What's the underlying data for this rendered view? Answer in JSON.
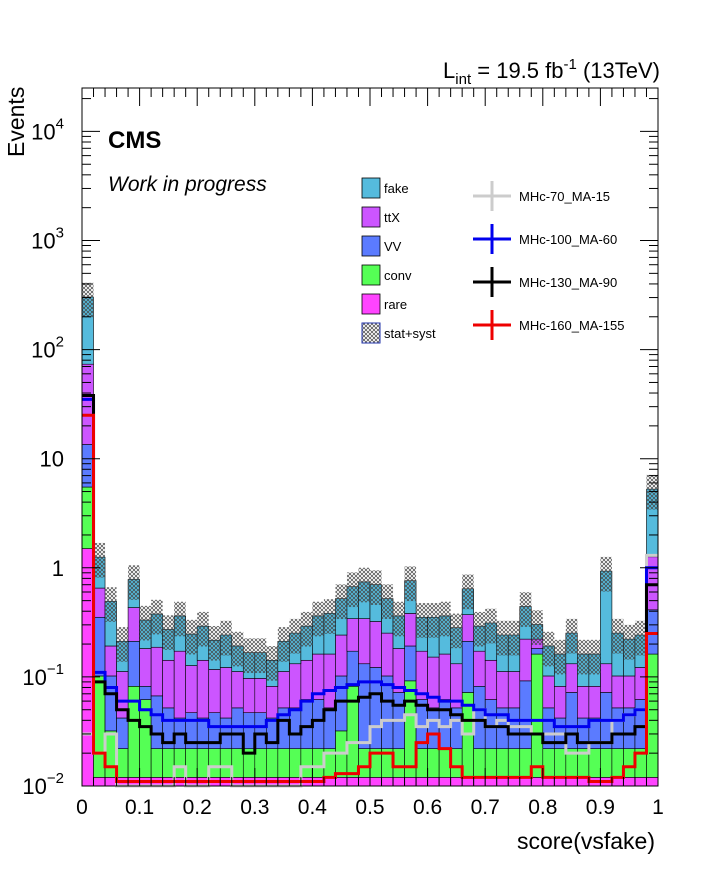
{
  "chart_data": {
    "type": "bar",
    "stacked": true,
    "log_y": true,
    "ylim": [
      0.01,
      25000
    ],
    "xlim": [
      0,
      1
    ],
    "xlabel": "score(vsfake)",
    "ylabel": "Events",
    "lumi_label_main": "L",
    "lumi_label_sub": "int",
    "lumi_label_mid": " = 19.5 fb",
    "lumi_label_sup": "-1",
    "lumi_label_tail": " (13TeV)",
    "experiment": "CMS",
    "status": "Work in progress",
    "x_ticks": [
      "0",
      "0.1",
      "0.2",
      "0.3",
      "0.4",
      "0.5",
      "0.6",
      "0.7",
      "0.8",
      "0.9",
      "1"
    ],
    "y_ticks": [
      {
        "value": 0.01,
        "base": "10",
        "exp": "−2"
      },
      {
        "value": 0.1,
        "base": "10",
        "exp": "−1"
      },
      {
        "value": 1,
        "base": "1",
        "exp": ""
      },
      {
        "value": 10,
        "base": "10",
        "exp": ""
      },
      {
        "value": 100,
        "base": "10",
        "exp": "2"
      },
      {
        "value": 1000,
        "base": "10",
        "exp": "3"
      },
      {
        "value": 10000,
        "base": "10",
        "exp": "4"
      }
    ],
    "stack": [
      {
        "name": "rare",
        "color": "#ff44ff",
        "values": [
          1.5,
          0.012,
          0.012,
          0.012,
          0.012,
          0.012,
          0.012,
          0.012,
          0.012,
          0.012,
          0.012,
          0.012,
          0.012,
          0.012,
          0.012,
          0.012,
          0.012,
          0.012,
          0.012,
          0.012,
          0.012,
          0.012,
          0.012,
          0.012,
          0.012,
          0.012,
          0.012,
          0.012,
          0.012,
          0.012,
          0.012,
          0.012,
          0.012,
          0.012,
          0.012,
          0.012,
          0.012,
          0.012,
          0.012,
          0.012,
          0.012,
          0.012,
          0.012,
          0.012,
          0.012,
          0.012,
          0.012,
          0.012,
          0.012,
          0.012
        ]
      },
      {
        "name": "conv",
        "color": "#55ff55",
        "values": [
          4,
          0.09,
          0.02,
          0.01,
          0.07,
          0.05,
          0.01,
          0.01,
          0.01,
          0.01,
          0.01,
          0.01,
          0.01,
          0.01,
          0.01,
          0.01,
          0.01,
          0.01,
          0.01,
          0.01,
          0.01,
          0.01,
          0.02,
          0.07,
          0.01,
          0.01,
          0.01,
          0.01,
          0.08,
          0.01,
          0.01,
          0.01,
          0.01,
          0.06,
          0.01,
          0.01,
          0.01,
          0.01,
          0.01,
          0.15,
          0.01,
          0.01,
          0.01,
          0.01,
          0.01,
          0.01,
          0.01,
          0.01,
          0.01,
          0.15
        ]
      },
      {
        "name": "VV",
        "color": "#5b7bff",
        "values": [
          8,
          0.25,
          0.07,
          0.02,
          0.13,
          0.02,
          0.045,
          0.03,
          0.02,
          0.025,
          0.02,
          0.025,
          0.02,
          0.03,
          0.025,
          0.025,
          0.02,
          0.03,
          0.03,
          0.04,
          0.04,
          0.03,
          0.07,
          0.09,
          0.11,
          0.1,
          0.08,
          0.05,
          0.1,
          0.04,
          0.03,
          0.04,
          0.03,
          0.14,
          0.06,
          0.04,
          0.03,
          0.03,
          0.07,
          0.02,
          0.03,
          0.02,
          0.05,
          0.02,
          0.02,
          0.05,
          0.03,
          0.03,
          0.04,
          0.25
        ]
      },
      {
        "name": "ttX",
        "color": "#cc55ff",
        "values": [
          60,
          0.3,
          0.09,
          0.07,
          0.22,
          0.1,
          0.12,
          0.09,
          0.13,
          0.08,
          0.1,
          0.07,
          0.08,
          0.06,
          0.05,
          0.05,
          0.04,
          0.06,
          0.08,
          0.08,
          0.1,
          0.11,
          0.14,
          0.17,
          0.21,
          0.2,
          0.15,
          0.11,
          0.19,
          0.11,
          0.1,
          0.1,
          0.08,
          0.16,
          0.09,
          0.08,
          0.06,
          0.06,
          0.13,
          0.04,
          0.05,
          0.04,
          0.06,
          0.04,
          0.04,
          0.06,
          0.05,
          0.05,
          0.06,
          0.85
        ]
      },
      {
        "name": "fake",
        "color": "#55bbdd",
        "values": [
          230,
          0.6,
          0.3,
          0.1,
          0.35,
          0.15,
          0.19,
          0.13,
          0.19,
          0.12,
          0.15,
          0.1,
          0.12,
          0.08,
          0.07,
          0.07,
          0.06,
          0.1,
          0.12,
          0.15,
          0.2,
          0.22,
          0.28,
          0.33,
          0.4,
          0.38,
          0.27,
          0.18,
          0.38,
          0.18,
          0.2,
          0.2,
          0.15,
          0.27,
          0.12,
          0.17,
          0.13,
          0.13,
          0.22,
          0.08,
          0.09,
          0.08,
          0.12,
          0.08,
          0.08,
          0.8,
          0.15,
          0.12,
          0.12,
          4
        ]
      }
    ],
    "uncertainty": {
      "name": "stat+syst",
      "fraction": 0.35
    },
    "signals": [
      {
        "name": "MHc-70_MA-15",
        "color": "#cccccc",
        "values": [
          0.03,
          0.02,
          0.03,
          0.01,
          0.01,
          0.01,
          0.01,
          0.01,
          0.015,
          0.01,
          0.01,
          0.015,
          0.015,
          0.01,
          0.01,
          0.01,
          0.01,
          0.01,
          0.01,
          0.015,
          0.015,
          0.02,
          0.02,
          0.025,
          0.025,
          0.035,
          0.04,
          0.04,
          0.045,
          0.035,
          0.04,
          0.035,
          0.04,
          0.03,
          0.05,
          0.035,
          0.04,
          0.035,
          0.035,
          0.03,
          0.03,
          0.03,
          0.02,
          0.02,
          0.025,
          0.025,
          0.04,
          0.045,
          0.05,
          1.3
        ]
      },
      {
        "name": "MHc-100_MA-60",
        "color": "#0000ee",
        "values": [
          35,
          0.11,
          0.08,
          0.06,
          0.06,
          0.05,
          0.045,
          0.04,
          0.04,
          0.04,
          0.04,
          0.035,
          0.035,
          0.035,
          0.035,
          0.035,
          0.04,
          0.045,
          0.05,
          0.06,
          0.07,
          0.075,
          0.08,
          0.085,
          0.09,
          0.09,
          0.085,
          0.08,
          0.075,
          0.07,
          0.065,
          0.06,
          0.06,
          0.055,
          0.05,
          0.045,
          0.045,
          0.04,
          0.04,
          0.04,
          0.04,
          0.035,
          0.035,
          0.035,
          0.04,
          0.04,
          0.04,
          0.045,
          0.05,
          1.0
        ]
      },
      {
        "name": "MHc-130_MA-90",
        "color": "#000000",
        "values": [
          38,
          0.09,
          0.07,
          0.05,
          0.04,
          0.035,
          0.03,
          0.025,
          0.03,
          0.025,
          0.025,
          0.025,
          0.03,
          0.03,
          0.02,
          0.03,
          0.025,
          0.04,
          0.03,
          0.035,
          0.04,
          0.05,
          0.06,
          0.06,
          0.065,
          0.07,
          0.06,
          0.055,
          0.06,
          0.055,
          0.05,
          0.05,
          0.045,
          0.04,
          0.04,
          0.035,
          0.035,
          0.03,
          0.03,
          0.03,
          0.025,
          0.025,
          0.03,
          0.025,
          0.025,
          0.025,
          0.03,
          0.03,
          0.035,
          0.7
        ]
      },
      {
        "name": "MHc-160_MA-155",
        "color": "#ee0000",
        "values": [
          25,
          0.02,
          0.015,
          0.011,
          0.011,
          0.011,
          0.011,
          0.011,
          0.011,
          0.011,
          0.011,
          0.011,
          0.011,
          0.011,
          0.011,
          0.011,
          0.011,
          0.011,
          0.011,
          0.011,
          0.011,
          0.012,
          0.013,
          0.013,
          0.015,
          0.02,
          0.02,
          0.015,
          0.015,
          0.025,
          0.03,
          0.022,
          0.015,
          0.012,
          0.012,
          0.012,
          0.012,
          0.012,
          0.012,
          0.015,
          0.012,
          0.012,
          0.012,
          0.012,
          0.011,
          0.011,
          0.012,
          0.015,
          0.02,
          0.25
        ]
      }
    ]
  }
}
